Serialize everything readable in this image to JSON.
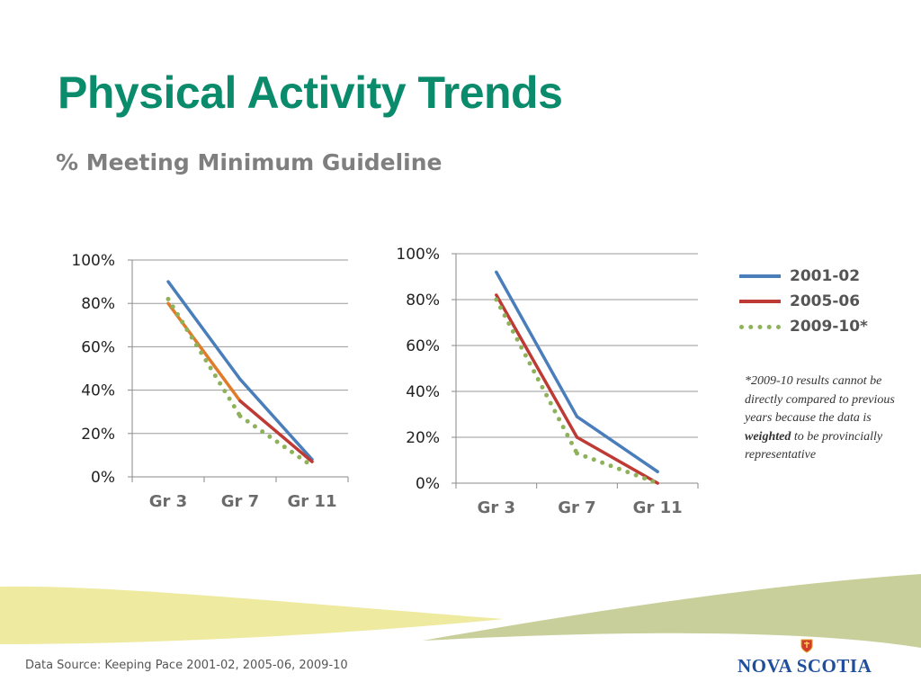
{
  "slide": {
    "title": "Physical Activity Trends",
    "subtitle": "% Meeting Minimum Guideline",
    "footnote_parts": [
      "*2009-10 results cannot be directly compared to previous years  because the data is ",
      "weighted",
      " to be provincially representative"
    ],
    "source": "Data Source:  Keeping Pace 2001-02, 2005-06, 2009-10",
    "logo_text": "NOVA SCOTIA"
  },
  "colors": {
    "title": "#0a8b6c",
    "series_2001": "#4a7ebb",
    "series_2005": "#be3a34",
    "series_2009": "#8db25a",
    "left_2005_segment": "#e07b2a",
    "wave_yellow": "#eeeaa0",
    "wave_green": "#c9cf9a"
  },
  "legend": [
    {
      "name": "2001-02",
      "color": "#4a7ebb",
      "style": "solid"
    },
    {
      "name": "2005-06",
      "color": "#be3a34",
      "style": "solid"
    },
    {
      "name": "2009-10*",
      "color": "#8db25a",
      "style": "dotted"
    }
  ],
  "chart_data": [
    {
      "type": "line",
      "categories": [
        "Gr 3",
        "Gr 7",
        "Gr 11"
      ],
      "ylim": [
        0,
        100
      ],
      "yticks": [
        "0%",
        "20%",
        "40%",
        "60%",
        "80%",
        "100%"
      ],
      "grid": true,
      "series": [
        {
          "name": "2001-02",
          "values": [
            90,
            45,
            8
          ],
          "style": "solid"
        },
        {
          "name": "2005-06",
          "values": [
            80,
            35,
            7
          ],
          "style": "solid"
        },
        {
          "name": "2009-10*",
          "values": [
            82,
            28,
            5
          ],
          "style": "dotted"
        }
      ]
    },
    {
      "type": "line",
      "categories": [
        "Gr 3",
        "Gr 7",
        "Gr 11"
      ],
      "ylim": [
        0,
        100
      ],
      "yticks": [
        "0%",
        "20%",
        "40%",
        "60%",
        "80%",
        "100%"
      ],
      "grid": true,
      "series": [
        {
          "name": "2001-02",
          "values": [
            92,
            29,
            5
          ],
          "style": "solid"
        },
        {
          "name": "2005-06",
          "values": [
            82,
            20,
            0
          ],
          "style": "solid"
        },
        {
          "name": "2009-10*",
          "values": [
            80,
            13,
            0
          ],
          "style": "dotted"
        }
      ]
    }
  ]
}
